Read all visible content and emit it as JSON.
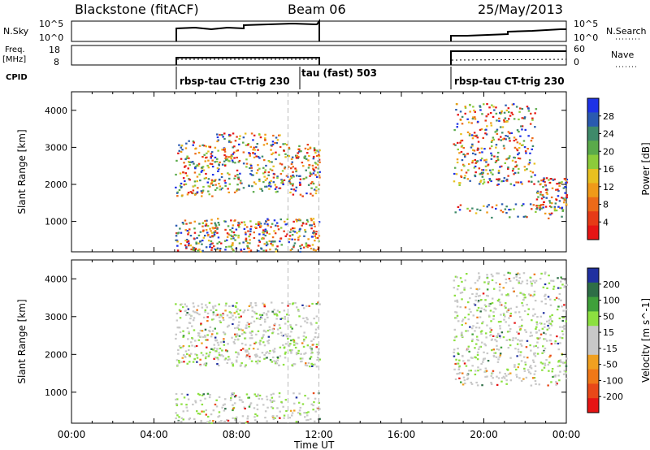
{
  "header": {
    "site": "Blackstone (fitACF)",
    "beam": "Beam 06",
    "date": "25/May/2013"
  },
  "strip_labels": {
    "nsky": "N.Sky",
    "nsky_ticks": [
      "10^5",
      "10^0"
    ],
    "freq": "Freq.",
    "freq_unit": "[MHz]",
    "freq_ticks": [
      "18",
      "8"
    ],
    "cpid": "CPID",
    "nsearch": "N.Search",
    "nsearch_ticks": [
      "10^5",
      "10^0"
    ],
    "nave": "Nave",
    "nave_ticks": [
      "60",
      "0"
    ]
  },
  "cpid_segments": [
    {
      "label": "rbsp-tau CT-trig 230",
      "start_h": 5.0,
      "end_h": 12.0
    },
    {
      "label": "tau (fast) 503",
      "start_h": 12.0,
      "end_h": 12.0
    },
    {
      "label": "rbsp-tau CT-trig 230",
      "start_h": 18.5,
      "end_h": 24.0
    }
  ],
  "time_axis": {
    "label": "Time UT",
    "ticks": [
      "00:00",
      "04:00",
      "08:00",
      "12:00",
      "16:00",
      "20:00",
      "00:00"
    ]
  },
  "chart_data": [
    {
      "type": "heatmap",
      "title": "Power",
      "ylabel": "Slant Range [km]",
      "xlabel": "",
      "xlim_hours": [
        0,
        24
      ],
      "ylim": [
        180,
        4500
      ],
      "yticks": [
        "4000",
        "3000",
        "2000",
        "1000"
      ],
      "colorbar": {
        "label": "Power [dB]",
        "ticks": [
          "28",
          "24",
          "20",
          "16",
          "12",
          "8",
          "4"
        ],
        "colors": [
          "#1e32e6",
          "#2a5ab0",
          "#3f8a6a",
          "#5aaa4a",
          "#8ccc3a",
          "#e8c020",
          "#f09a18",
          "#ec6a18",
          "#e63a16",
          "#e61414"
        ]
      },
      "scatter_regions": [
        {
          "x0": 5.0,
          "x1": 7.0,
          "y0": 1700,
          "y1": 3200,
          "level": 0.6
        },
        {
          "x0": 7.0,
          "x1": 10.5,
          "y0": 1800,
          "y1": 3400,
          "level": 0.55
        },
        {
          "x0": 10.5,
          "x1": 12.0,
          "y0": 1700,
          "y1": 3100,
          "level": 0.75
        },
        {
          "x0": 5.0,
          "x1": 12.0,
          "y0": 200,
          "y1": 1100,
          "level": 0.75
        },
        {
          "x0": 18.5,
          "x1": 22.5,
          "y0": 2000,
          "y1": 4200,
          "level": 0.45
        },
        {
          "x0": 22.5,
          "x1": 24.0,
          "y0": 1300,
          "y1": 2200,
          "level": 0.85
        },
        {
          "x0": 18.5,
          "x1": 24.0,
          "y0": 1100,
          "y1": 1500,
          "level": 0.3
        }
      ]
    },
    {
      "type": "heatmap",
      "title": "Velocity",
      "ylabel": "Slant Range [km]",
      "xlabel": "Time UT",
      "xlim_hours": [
        0,
        24
      ],
      "ylim": [
        180,
        4500
      ],
      "yticks": [
        "4000",
        "3000",
        "2000",
        "1000"
      ],
      "colorbar": {
        "label": "Velocity [m s^-1]",
        "ticks": [
          "200",
          "100",
          "50",
          "15",
          "-15",
          "-50",
          "-100",
          "-200"
        ],
        "colors": [
          "#2030a0",
          "#2e6e46",
          "#3fa03a",
          "#8ce040",
          "#c8c8c8",
          "#c8c8c8",
          "#f0a020",
          "#f07818",
          "#e84818",
          "#e61414"
        ]
      },
      "scatter_regions": [
        {
          "x0": 5.0,
          "x1": 12.0,
          "y0": 1700,
          "y1": 3400,
          "level": 0.55
        },
        {
          "x0": 5.0,
          "x1": 12.0,
          "y0": 200,
          "y1": 1000,
          "level": 0.45
        },
        {
          "x0": 18.5,
          "x1": 24.0,
          "y0": 1200,
          "y1": 4200,
          "level": 0.45
        }
      ]
    }
  ]
}
